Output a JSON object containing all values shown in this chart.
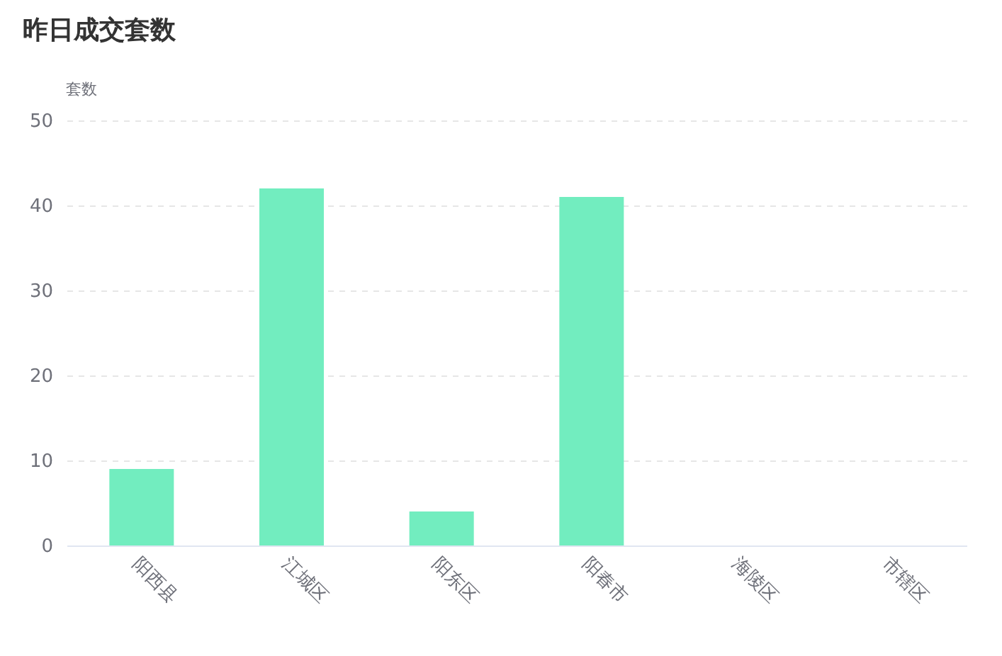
{
  "chart_data": {
    "type": "bar",
    "title": "昨日成交套数",
    "ylabel": "套数",
    "categories": [
      "阳西县",
      "江城区",
      "阳东区",
      "阳春市",
      "海陵区",
      "市辖区"
    ],
    "values": [
      9,
      42,
      4,
      41,
      0,
      0
    ],
    "color": "#72edbf",
    "ylim": [
      0,
      50
    ],
    "yticks": [
      0,
      10,
      20,
      30,
      40,
      50
    ],
    "grid": "y"
  }
}
